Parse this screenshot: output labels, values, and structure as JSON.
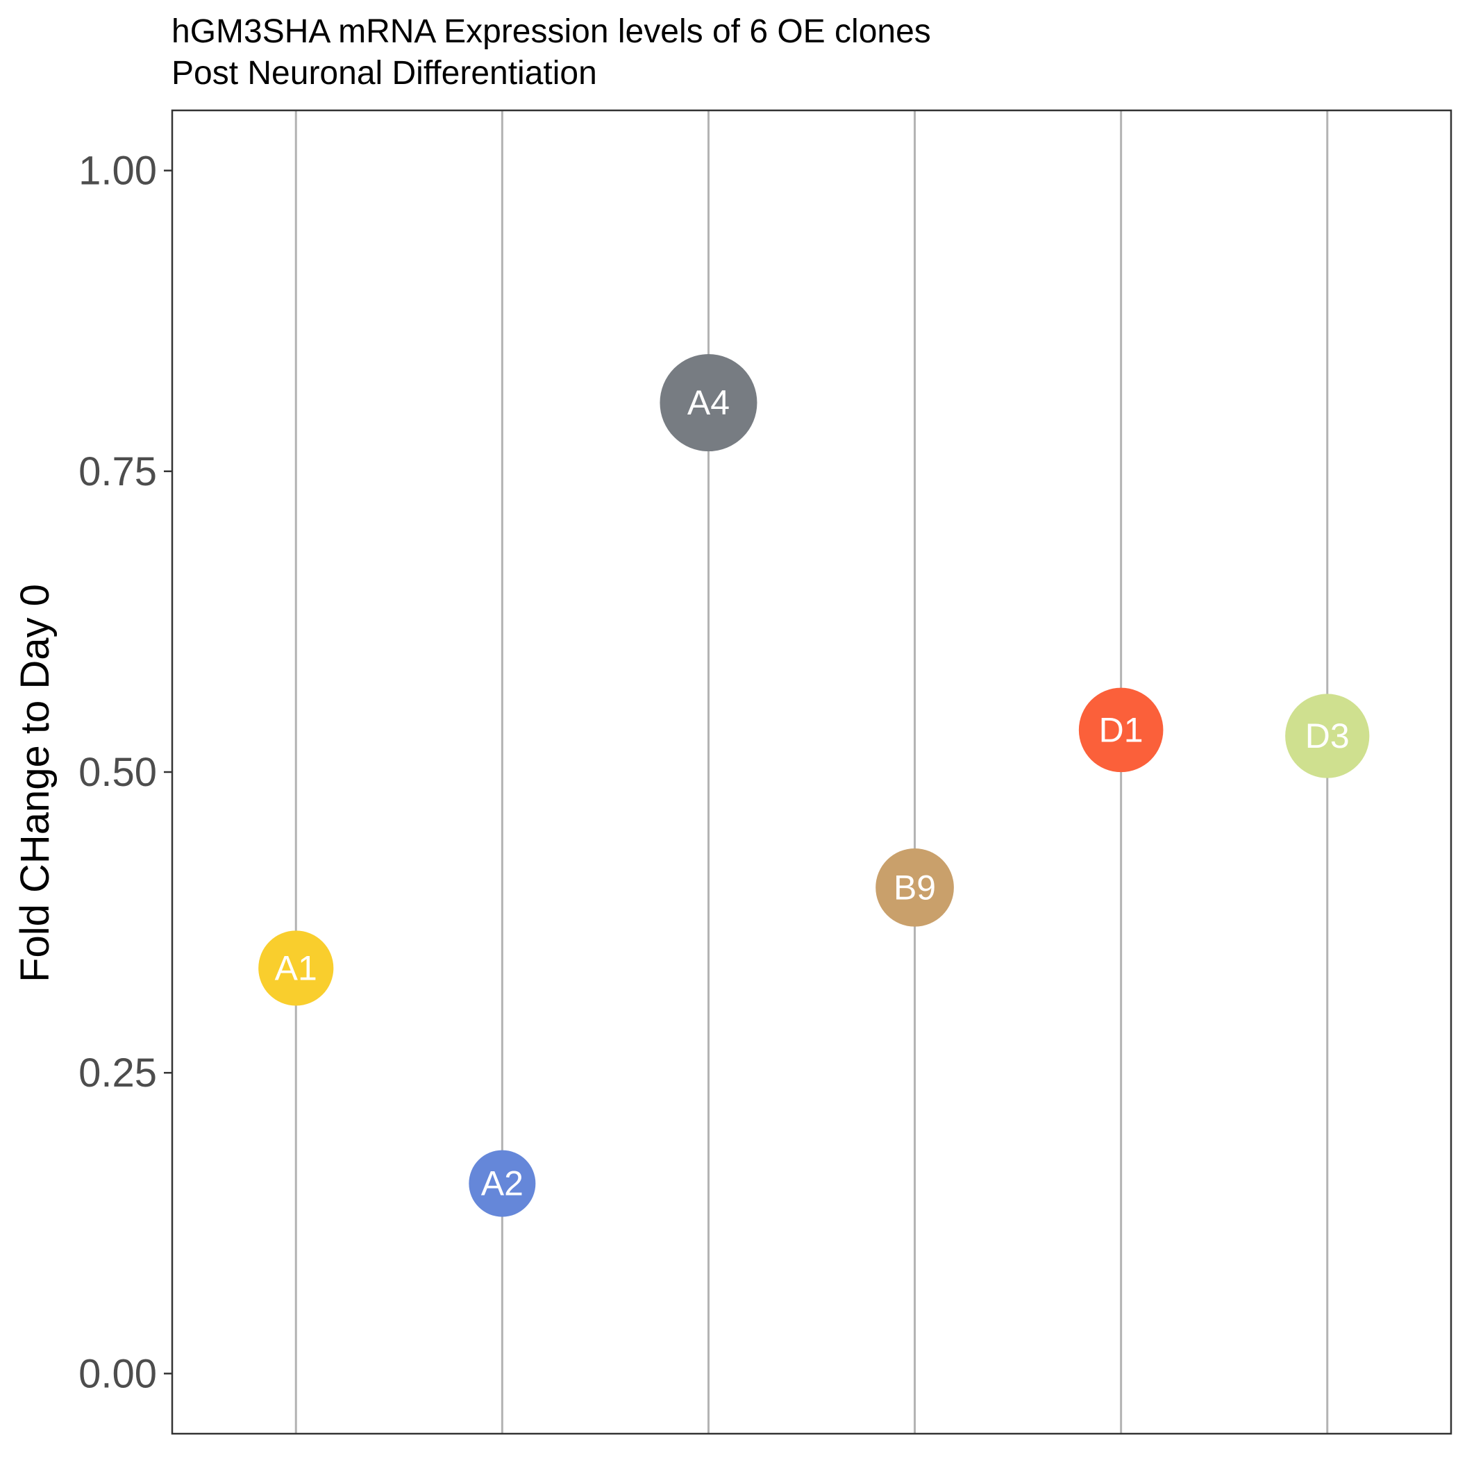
{
  "chart_data": {
    "type": "scatter",
    "title": "hGM3SHA mRNA Expression levels of 6 OE clones",
    "subtitle": "Post Neuronal Differentiation",
    "xlabel": "",
    "ylabel": "Fold CHange to Day 0",
    "ylim": [
      -0.05,
      1.05
    ],
    "yticks": [
      0.0,
      0.25,
      0.5,
      0.75,
      1.0
    ],
    "ytick_labels": [
      "0.00",
      "0.25",
      "0.50",
      "0.75",
      "1.00"
    ],
    "grid": "vertical",
    "categories": [
      "A1",
      "A2",
      "A4",
      "B9",
      "D1",
      "D3"
    ],
    "points": [
      {
        "label": "A1",
        "y": 0.337,
        "size": 0.337,
        "color": "#F9CE2D"
      },
      {
        "label": "A2",
        "y": 0.158,
        "size": 0.158,
        "color": "#6587D9"
      },
      {
        "label": "A4",
        "y": 0.807,
        "size": 0.807,
        "color": "#777C82"
      },
      {
        "label": "B9",
        "y": 0.404,
        "size": 0.404,
        "color": "#C9A06B"
      },
      {
        "label": "D1",
        "y": 0.535,
        "size": 0.535,
        "color": "#FB603A"
      },
      {
        "label": "D3",
        "y": 0.53,
        "size": 0.53,
        "color": "#CFE08F"
      }
    ]
  }
}
